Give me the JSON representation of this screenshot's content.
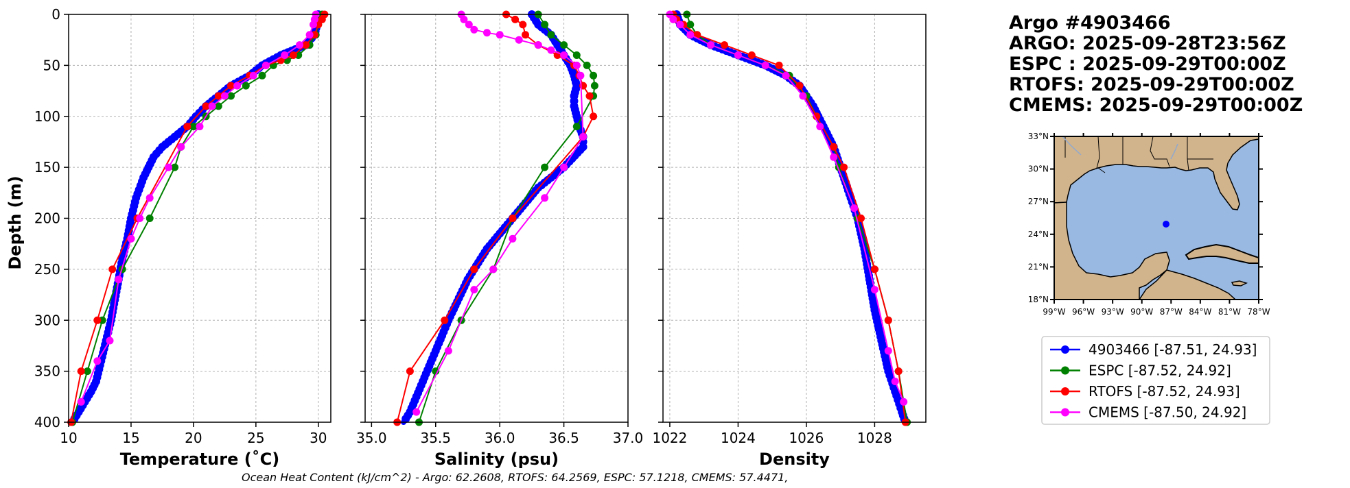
{
  "info": {
    "lines": [
      "Argo #4903466",
      "ARGO: 2025-09-28T23:56Z",
      "ESPC : 2025-09-29T00:00Z",
      "RTOFS: 2025-09-29T00:00Z",
      "CMEMS: 2025-09-29T00:00Z"
    ]
  },
  "footer": {
    "text": "Ocean Heat Content (kJ/cm^2) - Argo: 62.2608,  RTOFS: 64.2569,  ESPC: 57.1218,  CMEMS: 57.4471,"
  },
  "colors": {
    "argo": "#0000ff",
    "espc": "#008000",
    "rtofs": "#ff0000",
    "cmems": "#ff00ff",
    "ocean": "#99b9e2",
    "land": "#d2b48c"
  },
  "legend": [
    {
      "key": "argo",
      "label": "4903466 [-87.51, 24.93]"
    },
    {
      "key": "espc",
      "label": "ESPC [-87.52, 24.92]"
    },
    {
      "key": "rtofs",
      "label": "RTOFS [-87.52, 24.93]"
    },
    {
      "key": "cmems",
      "label": "CMEMS [-87.50, 24.92]"
    }
  ],
  "map": {
    "lon_ticks": [
      "99°W",
      "96°W",
      "93°W",
      "90°W",
      "87°W",
      "84°W",
      "81°W",
      "78°W"
    ],
    "lat_ticks": [
      "33°N",
      "30°N",
      "27°N",
      "24°N",
      "21°N",
      "18°N"
    ],
    "lon_range": [
      -99,
      -78
    ],
    "lat_range": [
      18,
      33
    ],
    "float_position": [
      -87.51,
      24.93
    ]
  },
  "chart_data": [
    {
      "type": "line",
      "xlabel": "Temperature (˚C)",
      "ylabel": "Depth (m)",
      "xlim": [
        10,
        31
      ],
      "ylim": [
        400,
        0
      ],
      "xticks": [
        10,
        15,
        20,
        25,
        30
      ],
      "yticks": [
        0,
        50,
        100,
        150,
        200,
        250,
        300,
        350,
        400
      ],
      "grid": true,
      "series": [
        {
          "name": "4903466",
          "key": "argo",
          "dense": true,
          "x": [
            30.0,
            29.9,
            29.7,
            29.0,
            27.0,
            25.5,
            24.5,
            23.0,
            22.0,
            21.0,
            20.2,
            19.5,
            18.5,
            17.5,
            16.8,
            16.0,
            15.4,
            15.0,
            14.7,
            14.3,
            14.0,
            13.7,
            13.4,
            13.0,
            12.6,
            12.2,
            11.8,
            11.3,
            10.8,
            10.3
          ],
          "depth": [
            0,
            10,
            20,
            30,
            40,
            50,
            60,
            70,
            80,
            90,
            100,
            110,
            120,
            130,
            140,
            160,
            180,
            200,
            220,
            240,
            260,
            280,
            300,
            320,
            340,
            360,
            370,
            380,
            390,
            400
          ]
        },
        {
          "name": "ESPC",
          "key": "espc",
          "x": [
            30.3,
            30.2,
            30.0,
            29.8,
            29.3,
            28.4,
            27.5,
            26.4,
            25.5,
            24.2,
            23.0,
            22.0,
            21.0,
            20.0,
            19.0,
            18.5,
            16.5,
            14.3,
            12.7,
            11.5,
            10.3
          ],
          "depth": [
            0,
            5,
            10,
            20,
            30,
            40,
            45,
            50,
            60,
            70,
            80,
            90,
            100,
            110,
            130,
            150,
            200,
            250,
            300,
            350,
            400
          ]
        },
        {
          "name": "RTOFS",
          "key": "rtofs",
          "x": [
            30.5,
            30.3,
            30.0,
            29.7,
            29.0,
            28.0,
            27.0,
            25.8,
            24.5,
            23.0,
            22.0,
            21.0,
            19.5,
            15.5,
            13.5,
            12.3,
            11.0,
            10.2
          ],
          "depth": [
            0,
            5,
            10,
            20,
            30,
            40,
            45,
            50,
            60,
            70,
            80,
            90,
            110,
            200,
            250,
            300,
            350,
            400
          ]
        },
        {
          "name": "CMEMS",
          "key": "cmems",
          "x": [
            29.8,
            29.7,
            29.6,
            29.3,
            28.5,
            27.3,
            25.8,
            24.8,
            23.5,
            22.5,
            21.5,
            20.5,
            19.0,
            18.0,
            16.5,
            15.7,
            15.0,
            14.0,
            13.3,
            12.3,
            11.0
          ],
          "depth": [
            0,
            5,
            10,
            20,
            30,
            40,
            50,
            60,
            70,
            80,
            90,
            110,
            130,
            150,
            180,
            200,
            220,
            260,
            320,
            340,
            380
          ]
        }
      ]
    },
    {
      "type": "line",
      "xlabel": "Salinity (psu)",
      "ylabel": "",
      "xlim": [
        34.95,
        37.0
      ],
      "ylim": [
        400,
        0
      ],
      "xticks": [
        35.0,
        35.5,
        36.0,
        36.5,
        37.0
      ],
      "yticks": [
        0,
        50,
        100,
        150,
        200,
        250,
        300,
        350,
        400
      ],
      "grid": true,
      "series": [
        {
          "name": "4903466",
          "key": "argo",
          "dense": true,
          "x": [
            36.25,
            36.3,
            36.4,
            36.45,
            36.55,
            36.58,
            36.6,
            36.58,
            36.58,
            36.6,
            36.62,
            36.65,
            36.65,
            36.5,
            36.3,
            36.1,
            35.9,
            35.75,
            35.6,
            35.5,
            35.4,
            35.3,
            35.25
          ],
          "depth": [
            0,
            10,
            20,
            30,
            50,
            60,
            70,
            80,
            90,
            100,
            110,
            120,
            130,
            150,
            170,
            200,
            230,
            260,
            300,
            330,
            360,
            390,
            400
          ]
        },
        {
          "name": "ESPC",
          "key": "espc",
          "x": [
            36.3,
            36.35,
            36.4,
            36.5,
            36.6,
            36.68,
            36.73,
            36.74,
            36.73,
            36.6,
            36.35,
            36.1,
            35.95,
            35.7,
            35.5,
            35.37
          ],
          "depth": [
            0,
            10,
            20,
            30,
            40,
            50,
            60,
            70,
            80,
            110,
            150,
            200,
            250,
            300,
            350,
            400
          ]
        },
        {
          "name": "RTOFS",
          "key": "rtofs",
          "x": [
            36.05,
            36.12,
            36.18,
            36.2,
            36.3,
            36.45,
            36.58,
            36.62,
            36.65,
            36.7,
            36.73,
            36.65,
            36.1,
            35.8,
            35.57,
            35.3,
            35.2
          ],
          "depth": [
            0,
            5,
            10,
            20,
            30,
            40,
            50,
            60,
            70,
            80,
            100,
            120,
            200,
            250,
            300,
            350,
            400
          ]
        },
        {
          "name": "CMEMS",
          "key": "cmems",
          "x": [
            35.7,
            35.72,
            35.76,
            35.8,
            35.9,
            36.0,
            36.15,
            36.3,
            36.4,
            36.5,
            36.6,
            36.63,
            36.65,
            36.5,
            36.35,
            36.1,
            35.95,
            35.8,
            35.6,
            35.35
          ],
          "depth": [
            0,
            5,
            10,
            15,
            18,
            20,
            25,
            30,
            35,
            40,
            50,
            60,
            120,
            150,
            180,
            220,
            250,
            270,
            330,
            390
          ]
        }
      ]
    },
    {
      "type": "line",
      "xlabel": "Density",
      "ylabel": "",
      "xlim": [
        1021.8,
        1029.5
      ],
      "ylim": [
        400,
        0
      ],
      "xticks": [
        1022,
        1024,
        1026,
        1028
      ],
      "yticks": [
        0,
        50,
        100,
        150,
        200,
        250,
        300,
        350,
        400
      ],
      "grid": true,
      "series": [
        {
          "name": "4903466",
          "key": "argo",
          "dense": true,
          "x": [
            1022.2,
            1022.3,
            1022.6,
            1023.2,
            1024.0,
            1024.8,
            1025.4,
            1025.8,
            1026.2,
            1026.5,
            1026.8,
            1027.0,
            1027.3,
            1027.5,
            1027.7,
            1027.85,
            1028.0,
            1028.2,
            1028.4,
            1028.6,
            1028.8,
            1028.9
          ],
          "depth": [
            0,
            10,
            20,
            30,
            40,
            50,
            60,
            70,
            90,
            110,
            130,
            150,
            180,
            200,
            230,
            260,
            290,
            320,
            350,
            370,
            390,
            400
          ]
        },
        {
          "name": "ESPC",
          "key": "espc",
          "x": [
            1022.5,
            1022.6,
            1022.8,
            1023.2,
            1024.0,
            1024.8,
            1025.5,
            1026.0,
            1026.3,
            1026.8,
            1026.95,
            1027.5,
            1028.0,
            1028.4,
            1028.7,
            1028.95
          ],
          "depth": [
            0,
            10,
            20,
            30,
            40,
            50,
            60,
            80,
            100,
            130,
            150,
            200,
            250,
            300,
            350,
            400
          ]
        },
        {
          "name": "RTOFS",
          "key": "rtofs",
          "x": [
            1022.1,
            1022.2,
            1022.4,
            1022.8,
            1023.6,
            1024.4,
            1025.2,
            1025.8,
            1026.3,
            1026.8,
            1027.1,
            1027.6,
            1028.0,
            1028.4,
            1028.7,
            1028.9
          ],
          "depth": [
            0,
            5,
            10,
            20,
            30,
            40,
            50,
            70,
            100,
            130,
            150,
            200,
            250,
            300,
            350,
            400
          ]
        },
        {
          "name": "CMEMS",
          "key": "cmems",
          "x": [
            1022.0,
            1022.1,
            1022.3,
            1022.6,
            1023.2,
            1024.0,
            1024.8,
            1025.4,
            1025.9,
            1026.4,
            1026.8,
            1027.4,
            1028.0,
            1028.4,
            1028.6,
            1028.85
          ],
          "depth": [
            0,
            5,
            10,
            20,
            30,
            40,
            50,
            60,
            80,
            110,
            140,
            190,
            270,
            330,
            360,
            380
          ]
        }
      ]
    }
  ]
}
